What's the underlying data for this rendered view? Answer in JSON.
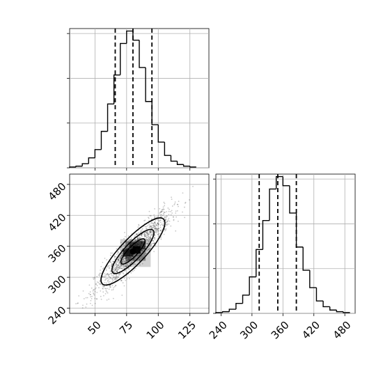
{
  "chart_data": [
    {
      "type": "histogram",
      "panel": "top-left marginal",
      "variable": "x",
      "bin_start": 30,
      "bin_width": 5,
      "counts": [
        1,
        2,
        5,
        12,
        22,
        44,
        77,
        112,
        150,
        165,
        154,
        121,
        80,
        52,
        31,
        15,
        8,
        4,
        2,
        1
      ],
      "xlim": [
        30,
        140
      ],
      "ylim": [
        0,
        168
      ],
      "quantile_lines": [
        66,
        80,
        95
      ],
      "x_ticks": [
        50,
        75,
        100,
        125
      ],
      "y_ticks": [
        0,
        54,
        108,
        162
      ],
      "grid": true
    },
    {
      "type": "heatmap",
      "panel": "bottom-left 2D",
      "variables": [
        "x",
        "y"
      ],
      "xlim": [
        30,
        140
      ],
      "ylim": [
        230,
        500
      ],
      "x_ticks": [
        50,
        75,
        100,
        125
      ],
      "y_ticks": [
        240,
        300,
        360,
        420,
        480
      ],
      "x_tick_labels": [
        "50",
        "75",
        "100",
        "125"
      ],
      "y_tick_labels": [
        "240",
        "300",
        "360",
        "420",
        "480"
      ],
      "correlation_slope": 2.6,
      "center": [
        80,
        350
      ],
      "contour_levels": [
        "outer",
        "mid",
        "inner"
      ],
      "peak": [
        80,
        350
      ],
      "grid": true
    },
    {
      "type": "histogram",
      "panel": "bottom-right marginal",
      "variable": "y",
      "bin_start": 230,
      "bin_width": 13,
      "counts": [
        1,
        2,
        5,
        12,
        22,
        44,
        77,
        112,
        150,
        165,
        154,
        121,
        80,
        52,
        31,
        15,
        8,
        4,
        2,
        1
      ],
      "xlim": [
        230,
        500
      ],
      "ylim": [
        0,
        168
      ],
      "quantile_lines": [
        314,
        350,
        386
      ],
      "x_ticks": [
        240,
        300,
        360,
        420,
        480
      ],
      "x_tick_labels": [
        "240",
        "300",
        "360",
        "420",
        "480"
      ],
      "y_ticks": [
        0,
        54,
        108,
        162
      ],
      "grid": true
    }
  ]
}
